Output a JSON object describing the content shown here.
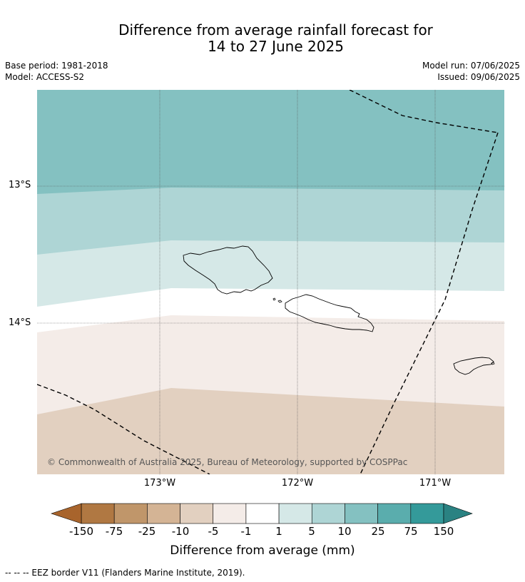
{
  "title_line1": "Difference from average rainfall forecast for",
  "title_line2": "14 to 27 June 2025",
  "base_period": "Base period: 1981-2018",
  "model": "Model: ACCESS-S2",
  "model_run": "Model run: 07/06/2025",
  "issued": "Issued: 09/06/2025",
  "map": {
    "lat_labels": [
      "13°S",
      "14°S"
    ],
    "lon_labels": [
      "173°W",
      "172°W",
      "171°W"
    ],
    "copyright": "© Commonwealth of Australia 2025, Bureau of Meteorology, supported by COSPPac"
  },
  "legend": {
    "tick_labels": [
      "-150",
      "-75",
      "-25",
      "-10",
      "-5",
      "-1",
      "1",
      "5",
      "10",
      "25",
      "75",
      "150"
    ],
    "colors": {
      "below_min": "#a8642c",
      "bins": [
        "#b07842",
        "#c0966a",
        "#d4b495",
        "#e2d0c0",
        "#f4ece8",
        "#ffffff",
        "#d5e8e7",
        "#aed5d5",
        "#84c1c1",
        "#5aadad",
        "#349a9a"
      ],
      "above_max": "#2a8282"
    },
    "title": "Difference from average (mm)"
  },
  "footnote": "--  --  -- EEZ border V11 (Flanders Marine Institute, 2019)."
}
